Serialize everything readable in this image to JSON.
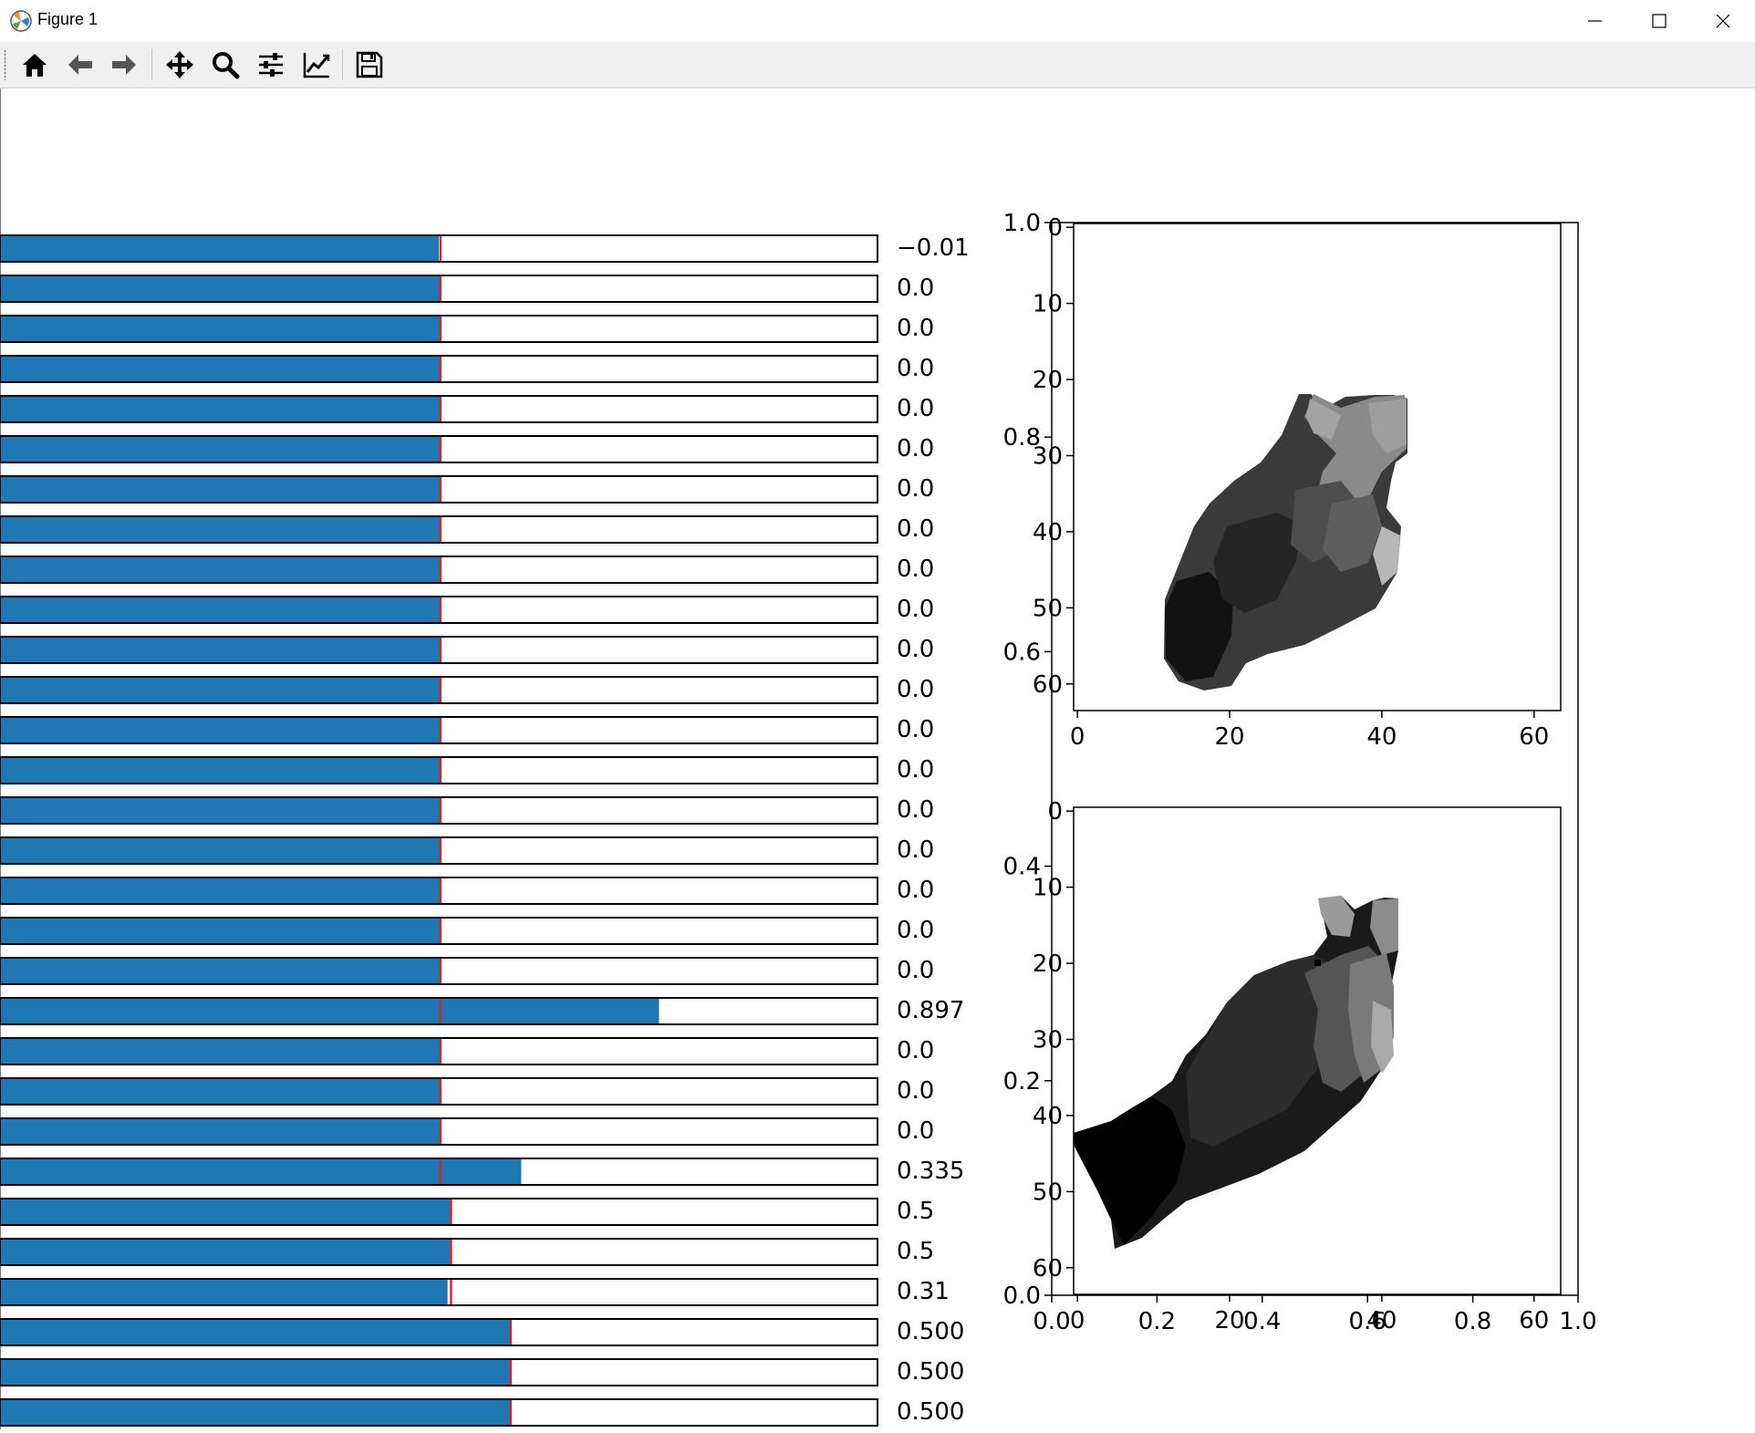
{
  "window": {
    "title": "Figure 1",
    "controls": [
      "minimize",
      "maximize",
      "close"
    ]
  },
  "toolbar": {
    "buttons": [
      {
        "name": "home",
        "icon": "home-icon"
      },
      {
        "name": "back",
        "icon": "arrow-left-icon"
      },
      {
        "name": "forward",
        "icon": "arrow-right-icon"
      },
      {
        "name": "pan",
        "icon": "move-icon"
      },
      {
        "name": "zoom",
        "icon": "magnifier-icon"
      },
      {
        "name": "configure-subplots",
        "icon": "sliders-icon"
      },
      {
        "name": "edit-axes",
        "icon": "line-chart-icon"
      },
      {
        "name": "save",
        "icon": "floppy-disk-icon"
      }
    ]
  },
  "chart_data": [
    {
      "type": "bar",
      "orientation": "horizontal",
      "description_of_marks": "each row: blue fill level, red marker line, printed value",
      "rows": [
        {
          "fill": 0.5,
          "marker": 0.502,
          "label": "−0.01"
        },
        {
          "fill": 0.502,
          "marker": 0.502,
          "label": "0.0"
        },
        {
          "fill": 0.502,
          "marker": 0.502,
          "label": "0.0"
        },
        {
          "fill": 0.502,
          "marker": 0.502,
          "label": "0.0"
        },
        {
          "fill": 0.502,
          "marker": 0.502,
          "label": "0.0"
        },
        {
          "fill": 0.502,
          "marker": 0.502,
          "label": "0.0"
        },
        {
          "fill": 0.502,
          "marker": 0.502,
          "label": "0.0"
        },
        {
          "fill": 0.502,
          "marker": 0.502,
          "label": "0.0"
        },
        {
          "fill": 0.502,
          "marker": 0.502,
          "label": "0.0"
        },
        {
          "fill": 0.502,
          "marker": 0.502,
          "label": "0.0"
        },
        {
          "fill": 0.502,
          "marker": 0.502,
          "label": "0.0"
        },
        {
          "fill": 0.502,
          "marker": 0.502,
          "label": "0.0"
        },
        {
          "fill": 0.502,
          "marker": 0.502,
          "label": "0.0"
        },
        {
          "fill": 0.502,
          "marker": 0.502,
          "label": "0.0"
        },
        {
          "fill": 0.502,
          "marker": 0.502,
          "label": "0.0"
        },
        {
          "fill": 0.502,
          "marker": 0.502,
          "label": "0.0"
        },
        {
          "fill": 0.502,
          "marker": 0.502,
          "label": "0.0"
        },
        {
          "fill": 0.502,
          "marker": 0.502,
          "label": "0.0"
        },
        {
          "fill": 0.502,
          "marker": 0.502,
          "label": "0.0"
        },
        {
          "fill": 0.751,
          "marker": 0.502,
          "label": "0.897"
        },
        {
          "fill": 0.502,
          "marker": 0.502,
          "label": "0.0"
        },
        {
          "fill": 0.502,
          "marker": 0.502,
          "label": "0.0"
        },
        {
          "fill": 0.502,
          "marker": 0.502,
          "label": "0.0"
        },
        {
          "fill": 0.594,
          "marker": 0.502,
          "label": "0.335"
        },
        {
          "fill": 0.514,
          "marker": 0.514,
          "label": "0.5"
        },
        {
          "fill": 0.514,
          "marker": 0.514,
          "label": "0.5"
        },
        {
          "fill": 0.51,
          "marker": 0.514,
          "label": "0.31"
        },
        {
          "fill": 0.582,
          "marker": 0.582,
          "label": "0.500"
        },
        {
          "fill": 0.582,
          "marker": 0.582,
          "label": "0.500"
        },
        {
          "fill": 0.582,
          "marker": 0.582,
          "label": "0.500"
        }
      ],
      "colors": {
        "fill": "#1f77b4",
        "marker": "#d62728",
        "edge": "#000000"
      }
    },
    {
      "type": "heatmap",
      "colormap": "gray",
      "x_ticks": [
        "0",
        "20",
        "40",
        "60"
      ],
      "y_ticks": [
        "0",
        "10",
        "20",
        "30",
        "40",
        "50",
        "60"
      ],
      "xlim": [
        -0.5,
        63.5
      ],
      "ylim": [
        63.5,
        -0.5
      ]
    },
    {
      "type": "heatmap",
      "colormap": "gray",
      "x_ticks": [
        "0",
        "20",
        "40",
        "60"
      ],
      "y_ticks": [
        "0",
        "10",
        "20",
        "30",
        "40",
        "50",
        "60"
      ],
      "xlim": [
        -0.5,
        63.5
      ],
      "ylim": [
        63.5,
        -0.5
      ]
    },
    {
      "type": "line",
      "x_ticks": [
        "0.0",
        "0.2",
        "0.4",
        "0.6",
        "0.8",
        "1.0"
      ],
      "y_ticks": [
        "0.0",
        "0.2",
        "0.4",
        "0.6",
        "0.8",
        "1.0"
      ],
      "xlim": [
        0,
        1
      ],
      "ylim": [
        0,
        1
      ]
    }
  ]
}
